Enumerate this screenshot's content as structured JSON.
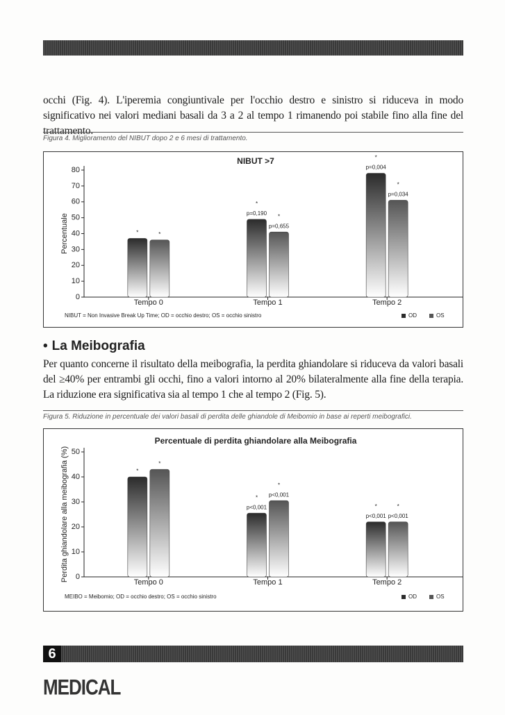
{
  "paragraphs": [
    "occhi (Fig. 4). L'iperemia congiuntivale per l'occhio destro e sinistro si riduceva in modo significativo nei valori mediani basali da 3 a 2 al tempo 1 rimanendo poi stabile fino alla fine del trattamento.",
    "Per quanto concerne il risultato della meibografia, la perdita ghiandolare si riduceva da valori basali del ≥40% per entrambi gli occhi, fino a valori intorno al 20% bilateralmente alla fine della terapia. La riduzione era significativa sia al tempo 1 che al tempo 2 (Fig. 5)."
  ],
  "figure_captions": [
    "Figura 4. Miglioramento del NIBUT dopo 2 e 6 mesi di trattamento.",
    "Figura 5. Riduzione in percentuale dei valori basali di perdita delle ghiandole di Meibomio in base ai reperti meibografici."
  ],
  "section_title": "La Meibografia",
  "page_number": "6",
  "logo": "MEDICAL",
  "chart_data": [
    {
      "type": "bar",
      "title": "NIBUT >7",
      "y_label": "Percentuale",
      "categories": [
        "Tempo 0",
        "Tempo 1",
        "Tempo 2"
      ],
      "series": [
        {
          "name": "OD",
          "color": "#2b2b2b",
          "values": [
            37,
            49,
            78
          ],
          "p_values": [
            null,
            "p=0,190",
            "p=0,004"
          ]
        },
        {
          "name": "OS",
          "color": "#555555",
          "values": [
            36,
            41,
            61
          ],
          "p_values": [
            null,
            "p=0,655",
            "p=0,034"
          ]
        }
      ],
      "significance_mark": "*",
      "ylim": [
        0,
        80
      ],
      "yticks": [
        0,
        10,
        20,
        30,
        40,
        50,
        60,
        70,
        80
      ],
      "footnote": "NIBUT = Non Invasive Break Up Time; OD = occhio destro; OS = occhio sinistro",
      "legend": "bottom-right"
    },
    {
      "type": "bar",
      "title": "Percentuale di perdita ghiandolare alla Meibografia",
      "y_label": "Perdita ghiandolare alla meibografia (%)",
      "categories": [
        "Tempo 0",
        "Tempo 1",
        "Tempo 2"
      ],
      "series": [
        {
          "name": "OD",
          "color": "#2b2b2b",
          "values": [
            40,
            25.5,
            22
          ],
          "p_values": [
            null,
            "p<0,001",
            "p<0,001"
          ]
        },
        {
          "name": "OS",
          "color": "#555555",
          "values": [
            43,
            30.5,
            22
          ],
          "p_values": [
            null,
            "p<0,001",
            "p<0,001"
          ]
        }
      ],
      "significance_mark": "*",
      "ylim": [
        0,
        50
      ],
      "yticks": [
        0,
        10,
        20,
        30,
        40,
        50
      ],
      "footnote": "MEIBO = Meibomio; OD = occhio destro; OS = occhio sinistro",
      "legend": "bottom-right"
    }
  ]
}
